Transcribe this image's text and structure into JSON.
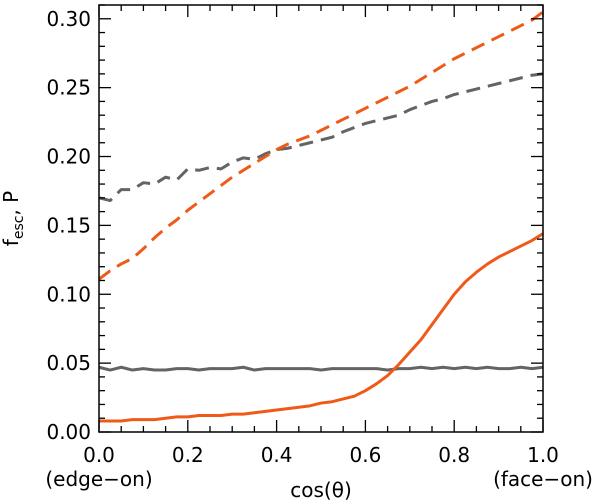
{
  "chart_data": {
    "type": "line",
    "title": "",
    "xlabel": "cos(θ)",
    "ylabel": "f_esc, P",
    "ylabel_main": "f",
    "ylabel_sub": "esc",
    "ylabel_rest": ", P",
    "xlim": [
      0.0,
      1.0
    ],
    "ylim": [
      0.0,
      0.31
    ],
    "x_ticks": [
      0.0,
      0.2,
      0.4,
      0.6,
      0.8,
      1.0
    ],
    "x_tick_labels": [
      "0.0",
      "0.2",
      "0.4",
      "0.6",
      "0.8",
      "1.0"
    ],
    "x_extra_labels": {
      "left": "(edge−on)",
      "right": "(face−on)"
    },
    "y_ticks": [
      0.0,
      0.05,
      0.1,
      0.15,
      0.2,
      0.25,
      0.3
    ],
    "y_tick_labels": [
      "0.00",
      "0.05",
      "0.10",
      "0.15",
      "0.20",
      "0.25",
      "0.30"
    ],
    "grid": false,
    "x": [
      0.0,
      0.025,
      0.05,
      0.075,
      0.1,
      0.125,
      0.15,
      0.175,
      0.2,
      0.225,
      0.25,
      0.275,
      0.3,
      0.325,
      0.35,
      0.375,
      0.4,
      0.425,
      0.45,
      0.475,
      0.5,
      0.525,
      0.55,
      0.575,
      0.6,
      0.625,
      0.65,
      0.675,
      0.7,
      0.725,
      0.75,
      0.775,
      0.8,
      0.825,
      0.85,
      0.875,
      0.9,
      0.925,
      0.95,
      0.975,
      1.0
    ],
    "series": [
      {
        "name": "grey dashed",
        "color": "#646464",
        "style": "dashed",
        "values": [
          0.17,
          0.168,
          0.176,
          0.176,
          0.181,
          0.18,
          0.185,
          0.183,
          0.191,
          0.19,
          0.192,
          0.191,
          0.196,
          0.199,
          0.198,
          0.202,
          0.205,
          0.206,
          0.208,
          0.21,
          0.212,
          0.214,
          0.218,
          0.221,
          0.224,
          0.226,
          0.228,
          0.23,
          0.234,
          0.237,
          0.24,
          0.242,
          0.245,
          0.247,
          0.249,
          0.251,
          0.253,
          0.255,
          0.257,
          0.259,
          0.26
        ]
      },
      {
        "name": "orange dashed",
        "color": "#f05a19",
        "style": "dashed",
        "values": [
          0.111,
          0.117,
          0.122,
          0.126,
          0.133,
          0.141,
          0.148,
          0.154,
          0.161,
          0.167,
          0.173,
          0.179,
          0.185,
          0.19,
          0.195,
          0.2,
          0.205,
          0.209,
          0.212,
          0.215,
          0.219,
          0.223,
          0.227,
          0.231,
          0.235,
          0.239,
          0.243,
          0.247,
          0.251,
          0.256,
          0.261,
          0.266,
          0.271,
          0.275,
          0.279,
          0.283,
          0.287,
          0.291,
          0.295,
          0.299,
          0.305
        ]
      },
      {
        "name": "grey solid",
        "color": "#646464",
        "style": "solid",
        "values": [
          0.047,
          0.045,
          0.047,
          0.045,
          0.046,
          0.045,
          0.045,
          0.046,
          0.046,
          0.045,
          0.046,
          0.046,
          0.046,
          0.047,
          0.045,
          0.046,
          0.046,
          0.046,
          0.046,
          0.046,
          0.045,
          0.046,
          0.046,
          0.046,
          0.046,
          0.046,
          0.045,
          0.046,
          0.046,
          0.047,
          0.046,
          0.047,
          0.046,
          0.047,
          0.046,
          0.047,
          0.046,
          0.046,
          0.047,
          0.046,
          0.047
        ]
      },
      {
        "name": "orange solid",
        "color": "#f05a19",
        "style": "solid",
        "values": [
          0.008,
          0.008,
          0.008,
          0.009,
          0.009,
          0.009,
          0.01,
          0.011,
          0.011,
          0.012,
          0.012,
          0.012,
          0.013,
          0.013,
          0.014,
          0.015,
          0.016,
          0.017,
          0.018,
          0.019,
          0.021,
          0.022,
          0.024,
          0.026,
          0.03,
          0.035,
          0.041,
          0.049,
          0.058,
          0.067,
          0.078,
          0.089,
          0.1,
          0.109,
          0.116,
          0.122,
          0.127,
          0.131,
          0.135,
          0.139,
          0.144
        ]
      }
    ]
  }
}
